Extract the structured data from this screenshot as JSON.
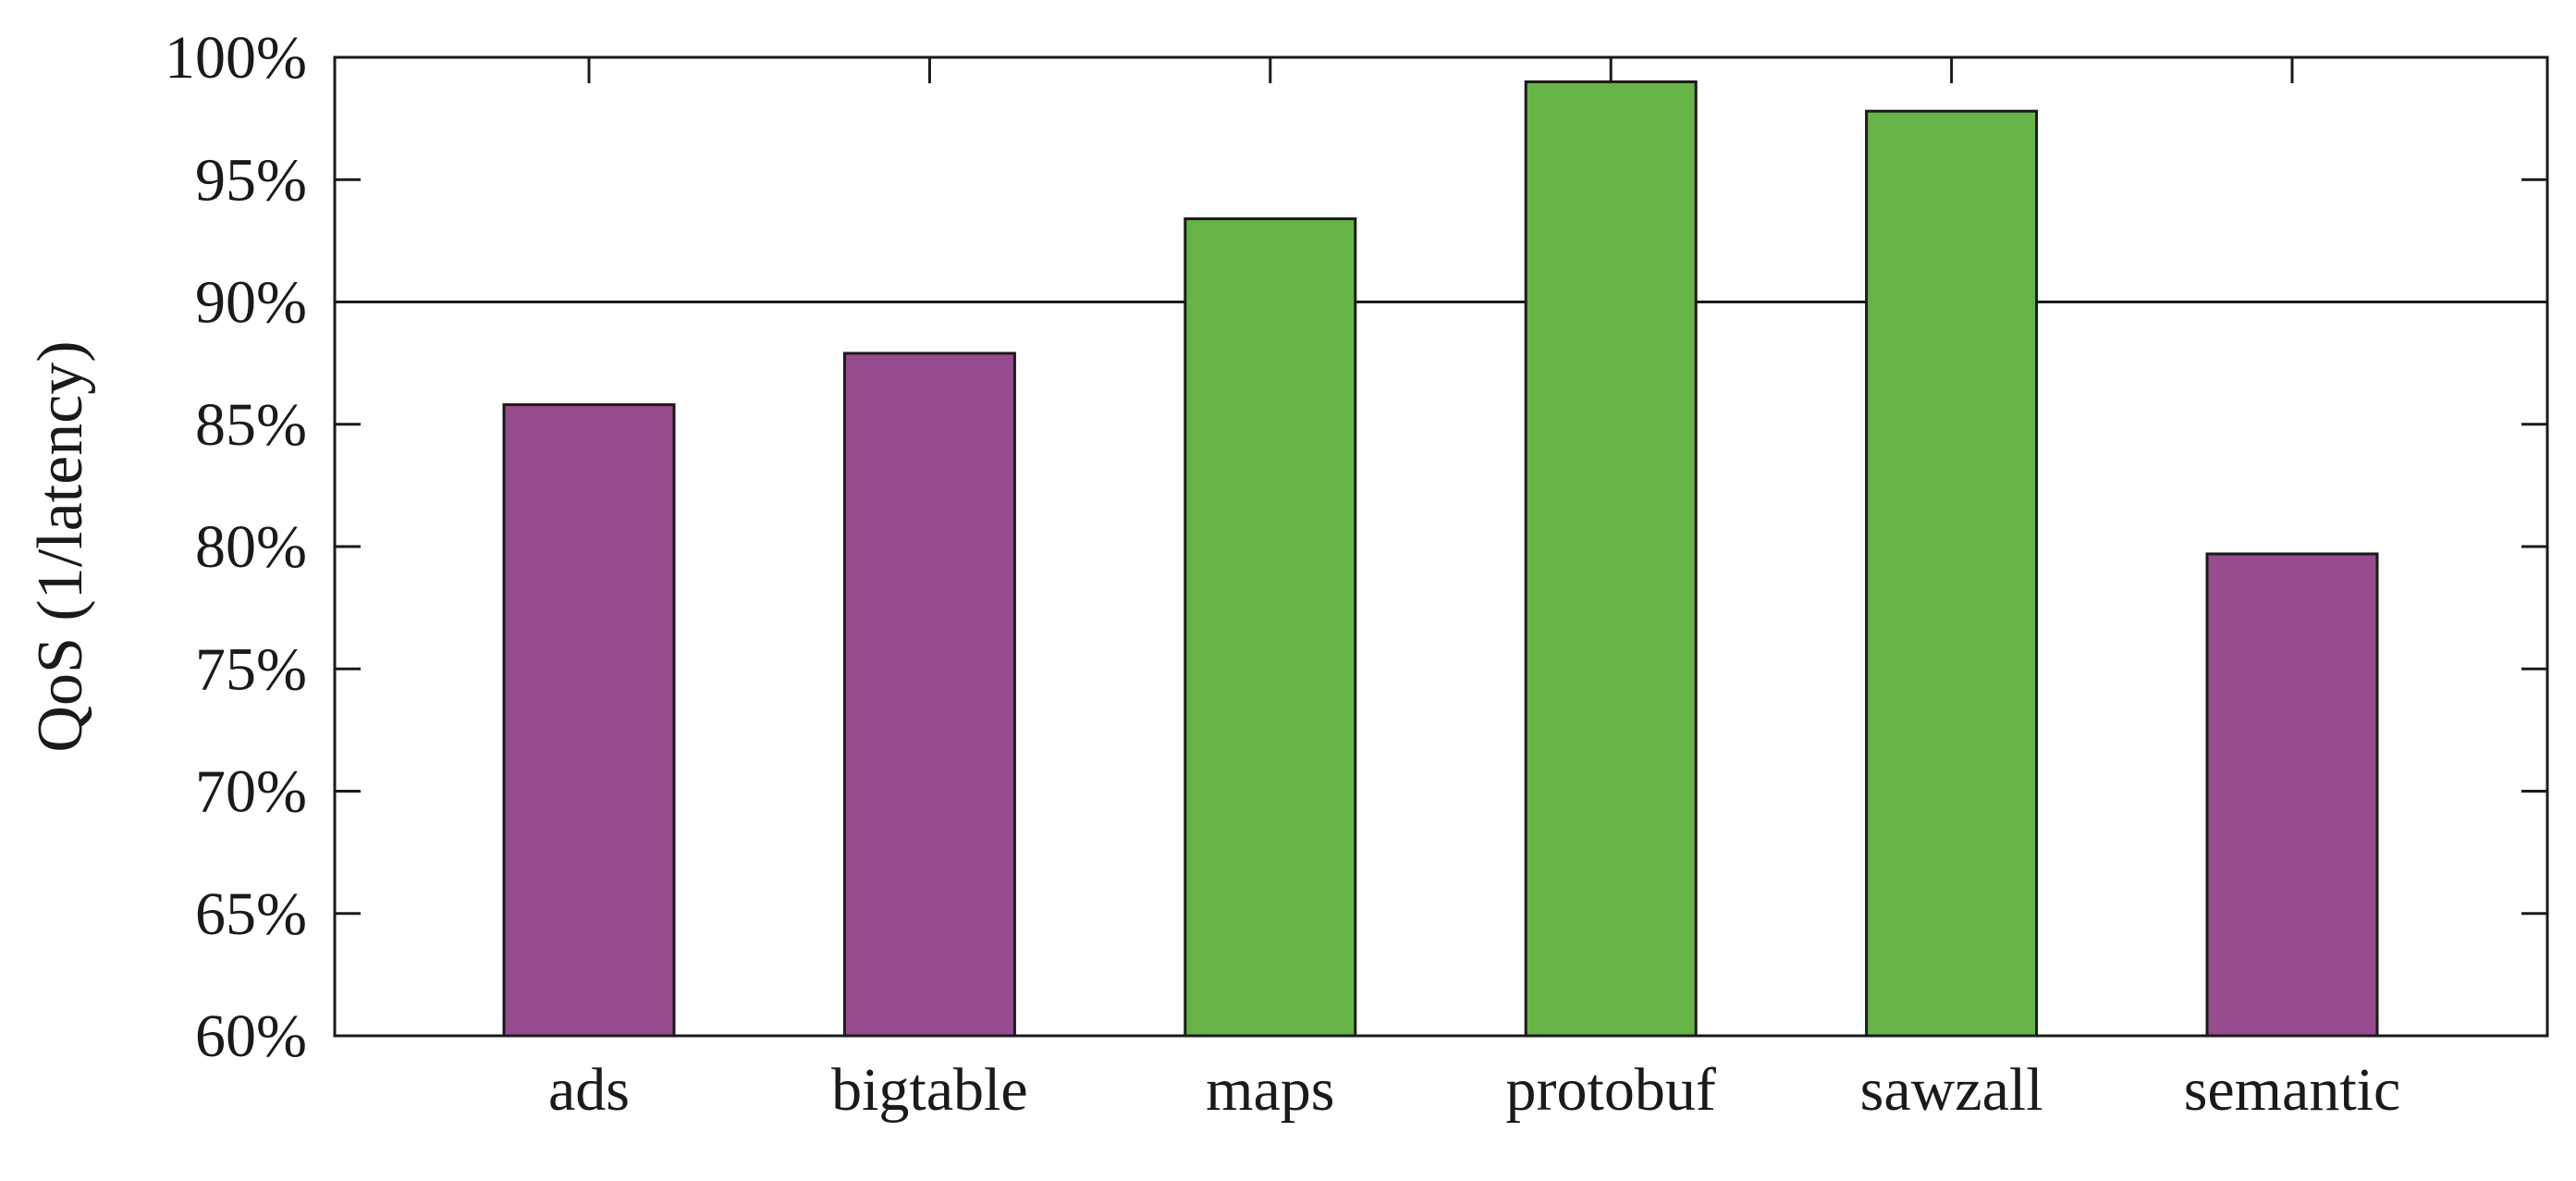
{
  "chart_data": {
    "type": "bar",
    "title": "",
    "xlabel": "",
    "ylabel": "QoS (1/latency)",
    "categories": [
      "ads",
      "bigtable",
      "maps",
      "protobuf",
      "sawzall",
      "semantic"
    ],
    "values": [
      85.8,
      87.9,
      93.4,
      99.0,
      97.8,
      79.7
    ],
    "bar_colors": [
      "#974c8d",
      "#974c8d",
      "#66b446",
      "#66b446",
      "#66b446",
      "#974c8d"
    ],
    "ylim": [
      60,
      100
    ],
    "yticks": [
      60,
      65,
      70,
      75,
      80,
      85,
      90,
      95,
      100
    ],
    "ytick_labels": [
      "60%",
      "65%",
      "70%",
      "75%",
      "80%",
      "85%",
      "90%",
      "95%",
      "100%"
    ],
    "reference_line": 90,
    "grid": false,
    "legend": "none"
  },
  "colors": {
    "purple": "#974c8d",
    "green": "#66b446",
    "axis": "#1a1a1a"
  }
}
